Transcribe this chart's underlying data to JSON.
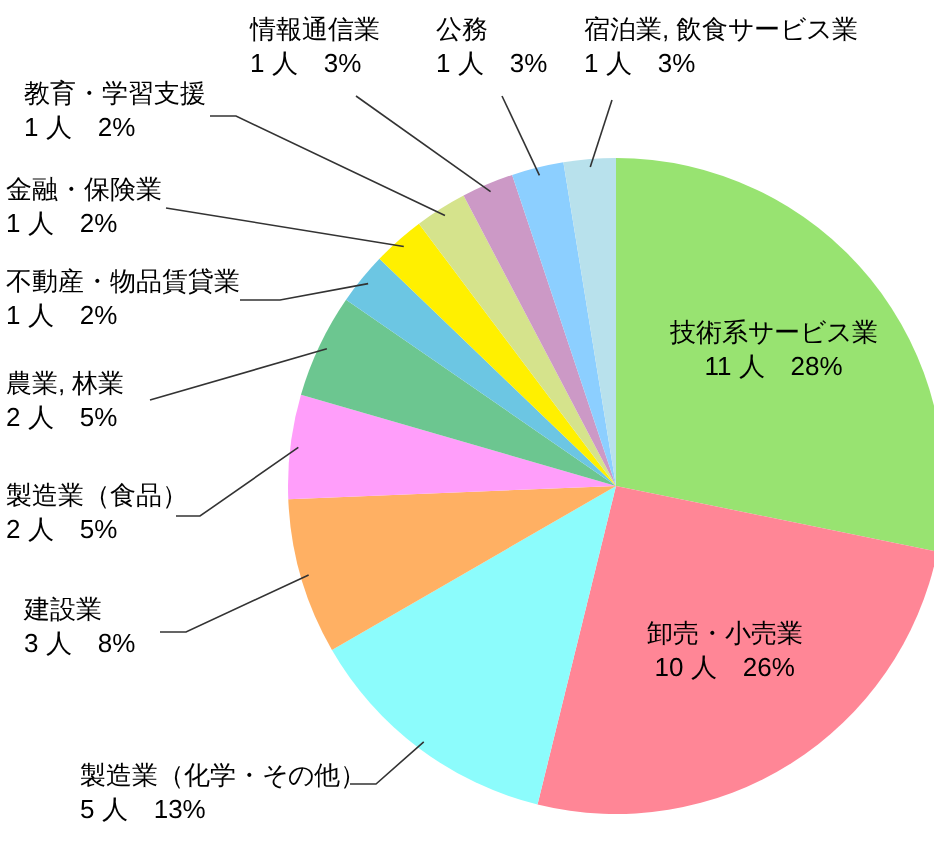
{
  "chart_data": {
    "type": "pie",
    "categories": [
      "技術系サービス業",
      "卸売・小売業",
      "製造業（化学・その他）",
      "建設業",
      "製造業（食品）",
      "農業, 林業",
      "不動産・物品賃貸業",
      "金融・保険業",
      "教育・学習支援",
      "情報通信業",
      "公務",
      "宿泊業, 飲食サービス業"
    ],
    "values": [
      11,
      10,
      5,
      3,
      2,
      2,
      1,
      1,
      1,
      1,
      1,
      1
    ],
    "value_labels": [
      "11 人　28%",
      "10 人　26%",
      "5 人　13%",
      "3 人　8%",
      "2 人　5%",
      "2 人　5%",
      "1 人　2%",
      "1 人　2%",
      "1 人　2%",
      "1 人　3%",
      "1 人　3%",
      "1 人　3%"
    ],
    "colors": [
      "#98e371",
      "#ff8696",
      "#8cfcfc",
      "#ffb063",
      "#ff9efa",
      "#6cc690",
      "#6cc6e3",
      "#fff000",
      "#d5e38c",
      "#cc99c6",
      "#8ccfff",
      "#b8e1ec"
    ]
  }
}
